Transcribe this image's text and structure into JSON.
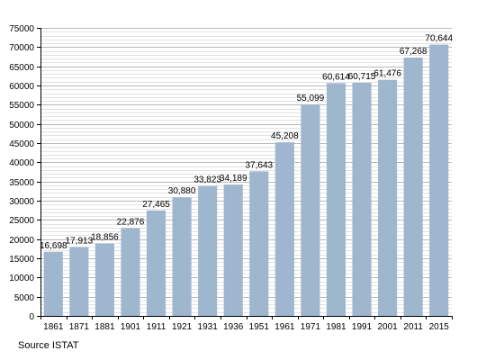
{
  "chart_data": {
    "type": "bar",
    "categories": [
      "1861",
      "1871",
      "1881",
      "1901",
      "1911",
      "1921",
      "1931",
      "1936",
      "1951",
      "1961",
      "1971",
      "1981",
      "1991",
      "2001",
      "2011",
      "2015"
    ],
    "values": [
      16698,
      17913,
      18856,
      22876,
      27465,
      30880,
      33823,
      34189,
      37643,
      45208,
      55099,
      60614,
      60715,
      61476,
      67268,
      70644
    ],
    "data_labels": [
      "16,698",
      "17,913",
      "18,856",
      "22,876",
      "27,465",
      "30,880",
      "33,823",
      "34,189",
      "37,643",
      "45,208",
      "55,099",
      "60,614",
      "60,715",
      "61,476",
      "67,268",
      "70,644"
    ],
    "ylim": [
      0,
      75000
    ],
    "yticks": [
      0,
      5000,
      10000,
      15000,
      20000,
      25000,
      30000,
      35000,
      40000,
      45000,
      50000,
      55000,
      60000,
      65000,
      70000,
      75000
    ],
    "minor_grid_step": 1000,
    "grid": true,
    "bar_color": "#9fb6cf",
    "source": "Source ISTAT"
  }
}
